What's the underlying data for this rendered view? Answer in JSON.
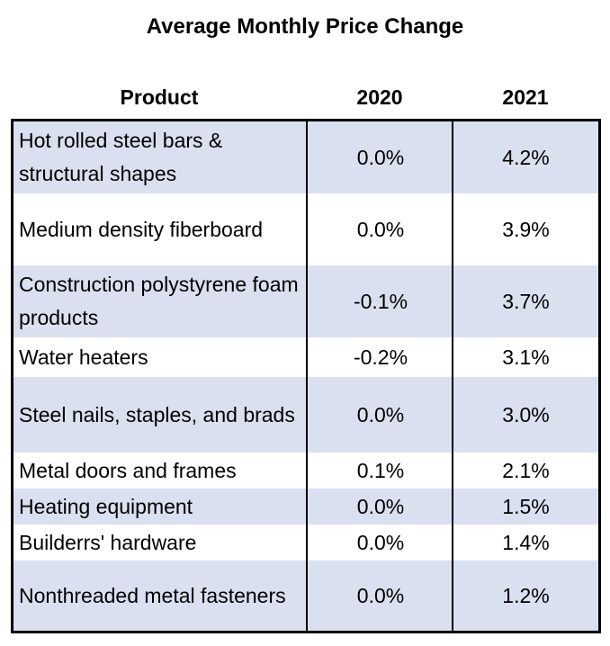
{
  "chart_data": {
    "type": "table",
    "title": "Average Monthly Price Change",
    "columns": [
      "Product",
      "2020",
      "2021"
    ],
    "rows": [
      {
        "product": "Hot rolled steel bars & structural shapes",
        "y2020": "0.0%",
        "y2021": "4.2%"
      },
      {
        "product": "Medium density fiberboard",
        "y2020": "0.0%",
        "y2021": "3.9%"
      },
      {
        "product": "Construction polystyrene foam products",
        "y2020": "-0.1%",
        "y2021": "3.7%"
      },
      {
        "product": "Water heaters",
        "y2020": "-0.2%",
        "y2021": "3.1%"
      },
      {
        "product": "Steel nails, staples, and brads",
        "y2020": "0.0%",
        "y2021": "3.0%"
      },
      {
        "product": "Metal doors and frames",
        "y2020": "0.1%",
        "y2021": "2.1%"
      },
      {
        "product": "Heating equipment",
        "y2020": "0.0%",
        "y2021": "1.5%"
      },
      {
        "product": "Builderrs' hardware",
        "y2020": "0.0%",
        "y2021": "1.4%"
      },
      {
        "product": "Nonthreaded metal fasteners",
        "y2020": "0.0%",
        "y2021": "1.2%"
      }
    ]
  },
  "colors": {
    "row_shade": "#dae0f0",
    "border": "#000000"
  }
}
